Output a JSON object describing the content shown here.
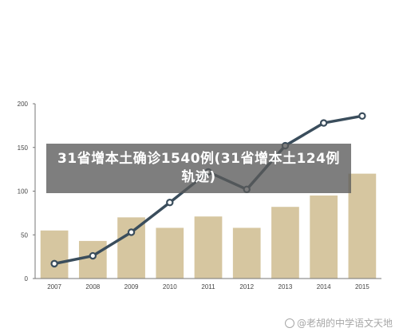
{
  "headline": "31省增本土确诊1540例(31省增本土124例轨迹)",
  "watermark": "@老胡的中学语文天地",
  "colors": {
    "bar": "#d6c6a0",
    "line": "#3a4d5c",
    "marker_fill": "#ffffff",
    "axis": "#777777"
  },
  "chart_data": {
    "type": "bar",
    "categories": [
      "2007",
      "2008",
      "2009",
      "2010",
      "2011",
      "2012",
      "2013",
      "2014",
      "2015"
    ],
    "ylim": [
      0,
      200
    ],
    "yticks": [
      0,
      50,
      100,
      150,
      200
    ],
    "grid": false,
    "series": [
      {
        "type": "bar",
        "values": [
          55,
          43,
          70,
          58,
          71,
          58,
          82,
          95,
          120
        ]
      },
      {
        "type": "line",
        "values": [
          17,
          26,
          53,
          87,
          122,
          102,
          152,
          178,
          186
        ]
      }
    ]
  }
}
